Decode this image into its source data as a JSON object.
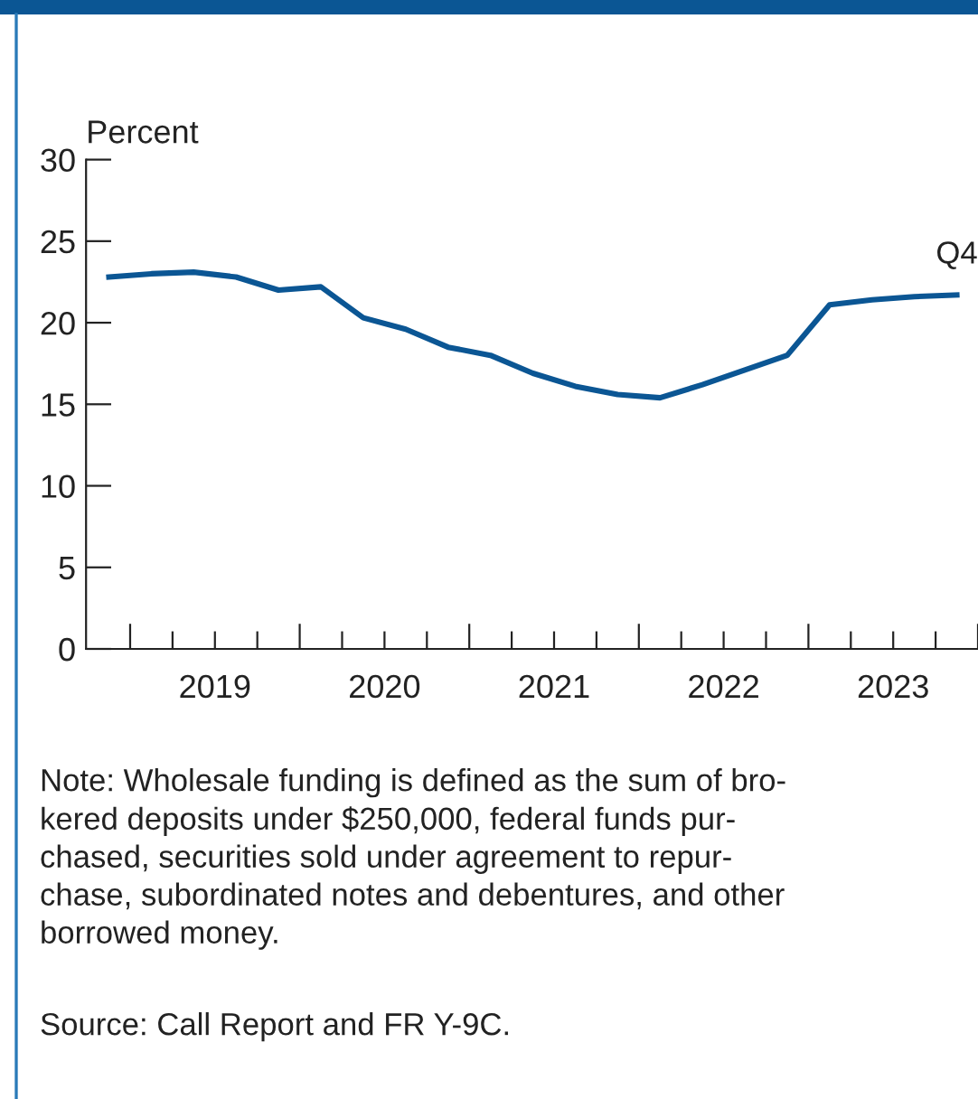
{
  "chart_data": {
    "type": "line",
    "ylabel": "Percent",
    "x": [
      2018.875,
      2019.125,
      2019.375,
      2019.625,
      2019.875,
      2020.125,
      2020.375,
      2020.625,
      2020.875,
      2021.125,
      2021.375,
      2021.625,
      2021.875,
      2022.125,
      2022.375,
      2022.625,
      2022.875,
      2023.125,
      2023.375,
      2023.625,
      2023.875
    ],
    "series": [
      {
        "color": "#0b5694",
        "values": [
          22.8,
          23.0,
          23.1,
          22.8,
          22.0,
          22.2,
          20.3,
          19.6,
          18.5,
          18.0,
          16.9,
          16.1,
          15.6,
          15.4,
          16.2,
          17.1,
          18.0,
          21.1,
          21.4,
          21.6,
          21.7
        ]
      }
    ],
    "xlim": [
      2018.74,
      2024.0
    ],
    "ylim": [
      0,
      30
    ],
    "yticks": [
      0,
      5,
      10,
      15,
      20,
      25,
      30
    ],
    "xticks": [
      {
        "value": 2019.0,
        "label": null
      },
      {
        "value": 2019.25,
        "label": null
      },
      {
        "value": 2019.5,
        "label": "2019"
      },
      {
        "value": 2019.75,
        "label": null
      },
      {
        "value": 2020.0,
        "label": null
      },
      {
        "value": 2020.25,
        "label": null
      },
      {
        "value": 2020.5,
        "label": "2020"
      },
      {
        "value": 2020.75,
        "label": null
      },
      {
        "value": 2021.0,
        "label": null
      },
      {
        "value": 2021.25,
        "label": null
      },
      {
        "value": 2021.5,
        "label": "2021"
      },
      {
        "value": 2021.75,
        "label": null
      },
      {
        "value": 2022.0,
        "label": null
      },
      {
        "value": 2022.25,
        "label": null
      },
      {
        "value": 2022.5,
        "label": "2022"
      },
      {
        "value": 2022.75,
        "label": null
      },
      {
        "value": 2023.0,
        "label": null
      },
      {
        "value": 2023.25,
        "label": null
      },
      {
        "value": 2023.5,
        "label": "2023"
      },
      {
        "value": 2023.75,
        "label": null
      },
      {
        "value": 2024.0,
        "label": null
      }
    ],
    "grid": false,
    "legend": false,
    "marker": "none",
    "line_style": "solid",
    "annotations": [
      {
        "text": "Q4",
        "x": 2023.875,
        "y": 21.7
      },
      "Note: Wholesale funding is defined as the sum of bro-\nkered deposits under $250,000, federal funds pur-\nchased, securities sold under agreement to repur-\nchase, subordinated notes and debentures, and other\nborrowed money.",
      "Source: Call Report and FR Y-9C."
    ]
  }
}
